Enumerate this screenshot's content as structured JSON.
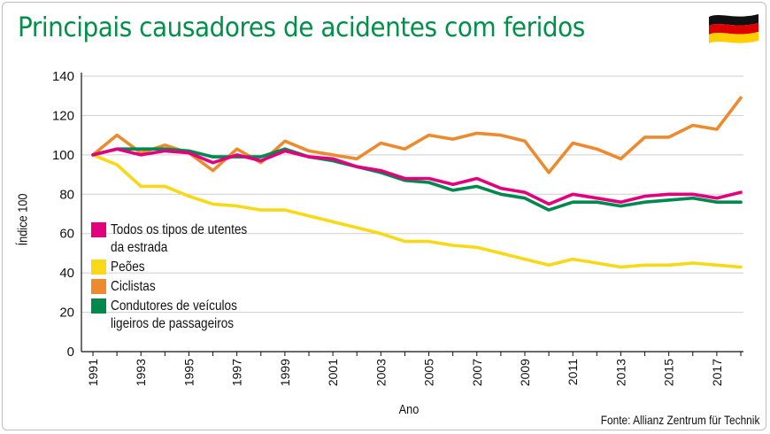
{
  "chart_data": {
    "type": "line",
    "title": "Principais causadores de acidentes com feridos",
    "xlabel": "Ano",
    "ylabel": "Índice 100",
    "source": "Fonte: Allianz Zentrum für Technik",
    "x": [
      1991,
      1992,
      1993,
      1994,
      1995,
      1996,
      1997,
      1998,
      1999,
      2000,
      2001,
      2002,
      2003,
      2004,
      2005,
      2006,
      2007,
      2008,
      2009,
      2010,
      2011,
      2012,
      2013,
      2014,
      2015,
      2016,
      2017,
      2018
    ],
    "x_tick_labels": [
      "1991",
      "1993",
      "1995",
      "1997",
      "1999",
      "2001",
      "2003",
      "2005",
      "2007",
      "2009",
      "2011",
      "2013",
      "2015",
      "2017"
    ],
    "y_tick_labels": [
      "0",
      "20",
      "40",
      "60",
      "80",
      "100",
      "120",
      "140"
    ],
    "ylim": [
      0,
      140
    ],
    "grid": "horizontal",
    "legend_position": "lower-left",
    "series": [
      {
        "name": "Todos os tipos de utentes da estrada",
        "color": "#e3007e",
        "values": [
          100,
          103,
          100,
          102,
          101,
          96,
          100,
          97,
          102,
          99,
          98,
          94,
          92,
          88,
          88,
          85,
          88,
          83,
          81,
          75,
          80,
          78,
          76,
          79,
          80,
          80,
          78,
          81
        ]
      },
      {
        "name": "Peões",
        "color": "#f7d917",
        "values": [
          100,
          95,
          84,
          84,
          79,
          75,
          74,
          72,
          72,
          69,
          66,
          63,
          60,
          56,
          56,
          54,
          53,
          50,
          47,
          44,
          47,
          45,
          43,
          44,
          44,
          45,
          44,
          43
        ]
      },
      {
        "name": "Ciclistas",
        "color": "#ee8a2e",
        "values": [
          100,
          110,
          101,
          105,
          101,
          92,
          103,
          96,
          107,
          102,
          100,
          98,
          106,
          103,
          110,
          108,
          111,
          110,
          107,
          91,
          106,
          103,
          98,
          109,
          109,
          115,
          113,
          129
        ]
      },
      {
        "name": "Condutores de veículos ligeiros de passageiros",
        "color": "#00894f",
        "values": [
          100,
          103,
          103,
          103,
          102,
          99,
          99,
          99,
          103,
          99,
          97,
          94,
          91,
          87,
          86,
          82,
          84,
          80,
          78,
          72,
          76,
          76,
          74,
          76,
          77,
          78,
          76,
          76
        ]
      }
    ]
  }
}
